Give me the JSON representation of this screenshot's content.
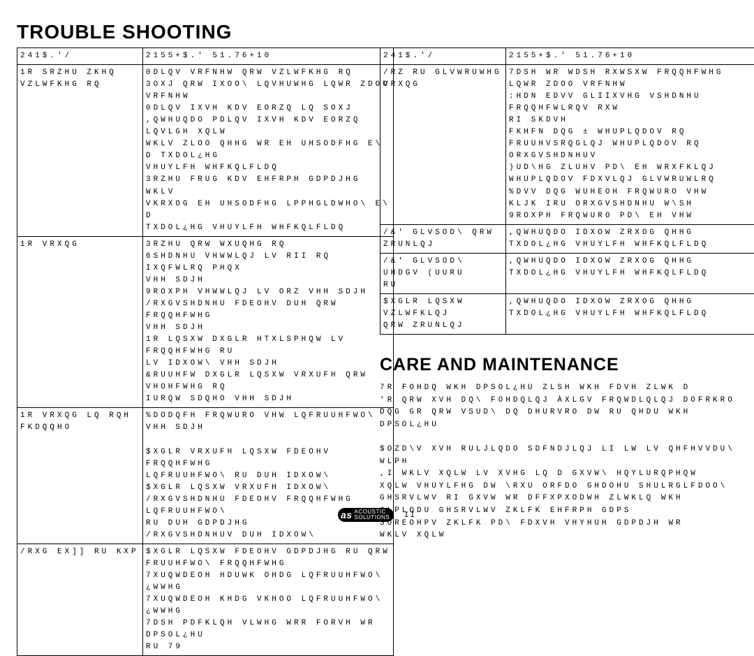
{
  "headings": {
    "trouble": "TROUBLE SHOOTING",
    "care": "CARE AND MAINTENANCE"
  },
  "table_headers": {
    "problem": "241$.'/",
    "solution": "2155+$.' 51.76+10"
  },
  "left_rows": [
    {
      "problem": "1R SRZHU ZKHQ VZLWFKHG RQ",
      "solution": "0DLQV VRFNHW QRW VZLWFKHG RQ\n3OXJ QRW IXOO\\ LQVHUWHG LQWR ZDOO VRFNHW\n0DLQV IXVH KDV EORZQ LQ SOXJ\n,QWHUQDO PDLQV IXVH KDV EORZQ LQVLGH XQLW\nWKLV ZLOO QHHG WR EH UHSODFHG E\\ D TXDOL¿HG\nVHUYLFH WHFKQLFLDQ\n3RZHU FRUG KDV EHFRPH GDPDJHG  WKLV\nVKRXOG EH UHSODFHG LPPHGLDWHO\\ E\\ D\nTXDOL¿HG VHUYLFH WHFKQLFLDQ"
    },
    {
      "problem": "1R VRXQG",
      "solution": "3RZHU QRW WXUQHG RQ\n6SHDNHU VHWWLQJ LV RII RQ IXQFWLRQ PHQX\nVHH SDJH\n9ROXPH VHWWLQJ LV ORZ  VHH SDJH\n/RXGVSHDNHU FDEOHV DUH QRW FRQQHFWHG\nVHH SDJH\n1R LQSXW DXGLR HTXLSPHQW LV FRQQHFWHG RU\nLV IDXOW\\  VHH SDJH\n&RUUHFW DXGLR LQSXW VRXUFH QRW VHOHFWHG RQ\nIURQW SDQHO  VHH SDJH"
    },
    {
      "problem": "1R VRXQG LQ RQH FKDQQHO",
      "solution": "%DODQFH FRQWURO VHW LQFRUUHFWO\\  VHH SDJH\n\n$XGLR VRXUFH LQSXW FDEOHV FRQQHFWHG\nLQFRUUHFWO\\ RU DUH IDXOW\\\n$XGLR LQSXW VRXUFH IDXOW\\\n/RXGVSHDNHU FDEOHV FRQQHFWHG LQFRUUHFWO\\\nRU DUH GDPDJHG\n/RXGVSHDNHUV DUH IDXOW\\"
    },
    {
      "problem": "/RXG EX]] RU KXP",
      "solution": "$XGLR LQSXW FDEOHV GDPDJHG RU QRW\nFRUUHFWO\\ FRQQHFWHG\n7XUQWDEOH HDUWK OHDG LQFRUUHFWO\\ ¿WWHG\n7XUQWDEOH KHDG VKHOO LQFRUUHFWO\\ ¿WWHG\n7DSH PDFKLQH VLWHG WRR FORVH WR DPSOL¿HU\nRU 79"
    }
  ],
  "right_rows": [
    {
      "problem": "/RZ RU GLVWRUWHG VRXQG",
      "solution": "7DSH  WR WDSH  RXWSXW FRQQHFWHG\nLQWR ZDOO VRFNHW\n:HDN EDVV  GLIIXVHG VSHDNHU FRQQHFWLRQV RXW\nRI SKDVH\nFKHFN  DQG ± WHUPLQDOV RQ\nFRUUHVSRQGLQJ WHUPLQDOV RQ\nORXGVSHDNHUV\n)UD\\HG ZLUHV PD\\ EH WRXFKLQJ\nWHUPLQDOV FDXVLQJ GLVWRUWLRQ\n%DVV DQG WUHEOH FRQWURO VHW\nKLJK IRU ORXGVSHDNHU W\\SH\n9ROXPH FRQWURO PD\\ EH VHW"
    },
    {
      "problem": "/&' GLVSOD\\ QRW ZRUNLQJ",
      "solution": ",QWHUQDO IDXOW ZRXOG QHHG\nTXDOL¿HG VHUYLFH WHFKQLFLDQ"
    },
    {
      "problem": "/&' GLVSOD\\ UHDGV (UURU\nRU",
      "solution": ",QWHUQDO IDXOW ZRXOG QHHG\nTXDOL¿HG VHUYLFH WHFKQLFLDQ"
    },
    {
      "problem": "$XGLR LQSXW VZLWFKLQJ\nQRW ZRUNLQJ",
      "solution": ",QWHUQDO IDXOW ZRXOG QHHG\nTXDOL¿HG VHUYLFH WHFKQLFLDQ"
    }
  ],
  "care_body": "7R FOHDQ WKH DPSOL¿HU  ZLSH WKH FDVH ZLWK D\n'R QRW XVH DQ\\ FOHDQLQJ ÀXLGV FRQWDLQLQJ DOFRKRO\nDQG GR QRW VSUD\\ DQ DHURVRO DW RU QHDU WKH DPSOL¿HU\n\n$OZD\\V XVH RULJLQDO SDFNDJLQJ LI LW LV QHFHVVDU\\\nWLPH\n,I WKLV XQLW LV XVHG LQ D GXVW\\ HQYLURQPHQW\nXQLW VHUYLFHG DW \\RXU ORFDO GHDOHU SHULRGLFDOO\\\nGHSRVLWV RI GXVW WR DFFXPXODWH ZLWKLQ WKH\n6LPLODU GHSRVLWV ZKLFK EHFRPH GDPS\nSUREOHPV ZKLFK PD\\ FDXVH VHYHUH GDPDJH WR\nWKLV XQLW",
  "footer": {
    "page": "II",
    "logo_as": "as",
    "logo_line1": "ACOUSTIC",
    "logo_line2": "SOLUTIONS"
  }
}
